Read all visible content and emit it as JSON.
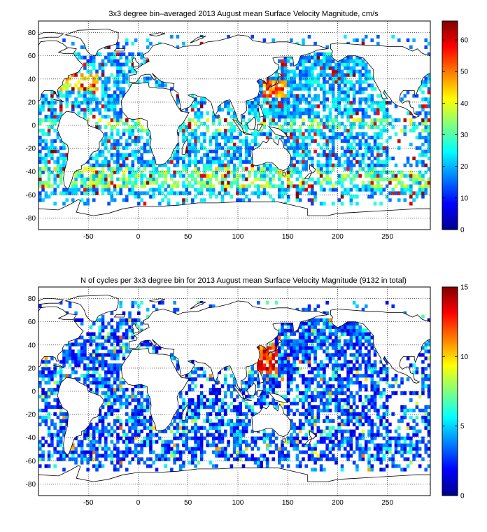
{
  "top_panel": {
    "title": "3x3 degree bin–averaged 2013 August mean Surface Velocity Magnitude, cm/s",
    "colorbar": {
      "min": 0,
      "max": 66,
      "ticks": [
        "0",
        "10",
        "20",
        "30",
        "40",
        "50",
        "60"
      ],
      "tick_values": [
        0,
        10,
        20,
        30,
        40,
        50,
        60
      ]
    }
  },
  "bottom_panel": {
    "title": "N of cycles per 3x3 degree bin for 2013 August mean Surface Velocity Magnitude (9132 in total)",
    "colorbar": {
      "min": 0,
      "max": 15,
      "ticks": [
        "0",
        "5",
        "10",
        "15"
      ],
      "tick_values": [
        0,
        5,
        10,
        15
      ]
    }
  },
  "axes": {
    "x_ticks": [
      "-50",
      "0",
      "50",
      "100",
      "150",
      "200",
      "250"
    ],
    "x_values": [
      -50,
      0,
      50,
      100,
      150,
      200,
      250
    ],
    "y_ticks": [
      "80",
      "60",
      "40",
      "20",
      "0",
      "-20",
      "-40",
      "-60",
      "-80"
    ],
    "y_values": [
      80,
      60,
      40,
      20,
      0,
      -20,
      -40,
      -60,
      -80
    ],
    "xlim": [
      -100,
      293
    ],
    "ylim": [
      -90,
      90
    ],
    "grid": "dotted"
  },
  "colormap": "jet"
}
